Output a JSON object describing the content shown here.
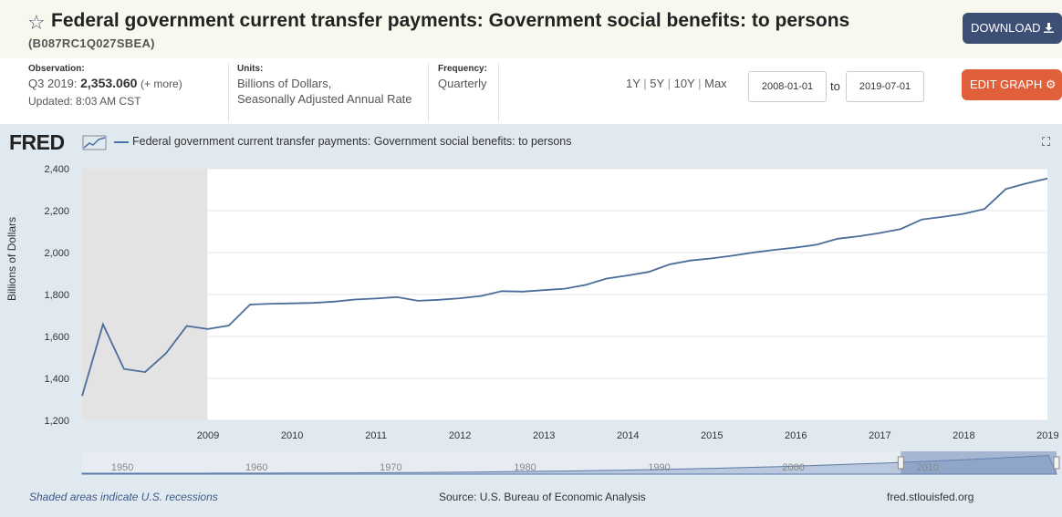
{
  "header": {
    "title": "Federal government current transfer payments: Government social benefits: to persons",
    "series_id": "(B087RC1Q027SBEA)",
    "download_label": "DOWNLOAD"
  },
  "meta": {
    "observation_label": "Observation:",
    "observation_period": "Q3 2019:",
    "observation_value": "2,353.060",
    "observation_more": "(+ more)",
    "updated": "Updated: 8:03 AM CST",
    "units_label": "Units:",
    "units_line1": "Billions of Dollars,",
    "units_line2": "Seasonally Adjusted Annual Rate",
    "frequency_label": "Frequency:",
    "frequency_value": "Quarterly"
  },
  "controls": {
    "range_1y": "1Y",
    "range_5y": "5Y",
    "range_10y": "10Y",
    "range_max": "Max",
    "start_date": "2008-01-01",
    "to_label": "to",
    "end_date": "2019-07-01",
    "edit_label": "EDIT GRAPH"
  },
  "chart_header": {
    "logo": "FRED",
    "legend": "Federal government current transfer payments: Government social benefits: to persons",
    "ylabel": "Billions of Dollars"
  },
  "footer": {
    "recession_note": "Shaded areas indicate U.S. recessions",
    "source": "Source: U.S. Bureau of Economic Analysis",
    "site": "fred.stlouisfed.org"
  },
  "colors": {
    "line": "#4a6d9a",
    "recession": "#e3e3e3",
    "plot_bg": "#ffffff",
    "frame_bg": "#e1e9f0",
    "download_btn": "#3d4f74",
    "edit_btn": "#e0603c"
  },
  "chart_data": {
    "type": "line",
    "title": "",
    "xlabel": "",
    "ylabel": "Billions of Dollars",
    "ylim": [
      1200,
      2400
    ],
    "yticks": [
      1200,
      1400,
      1600,
      1800,
      2000,
      2200,
      2400
    ],
    "ytick_labels": [
      "1,200",
      "1,400",
      "1,600",
      "1,800",
      "2,000",
      "2,200",
      "2,400"
    ],
    "xticks": [
      "2009",
      "2010",
      "2011",
      "2012",
      "2013",
      "2014",
      "2015",
      "2016",
      "2017",
      "2018",
      "2019"
    ],
    "recession": {
      "start": "2008-01-01",
      "end": "2009-06-30"
    },
    "grid": true,
    "x": [
      "2008-01-01",
      "2008-04-01",
      "2008-07-01",
      "2008-10-01",
      "2009-01-01",
      "2009-04-01",
      "2009-07-01",
      "2009-10-01",
      "2010-01-01",
      "2010-04-01",
      "2010-07-01",
      "2010-10-01",
      "2011-01-01",
      "2011-04-01",
      "2011-07-01",
      "2011-10-01",
      "2012-01-01",
      "2012-04-01",
      "2012-07-01",
      "2012-10-01",
      "2013-01-01",
      "2013-04-01",
      "2013-07-01",
      "2013-10-01",
      "2014-01-01",
      "2014-04-01",
      "2014-07-01",
      "2014-10-01",
      "2015-01-01",
      "2015-04-01",
      "2015-07-01",
      "2015-10-01",
      "2016-01-01",
      "2016-04-01",
      "2016-07-01",
      "2016-10-01",
      "2017-01-01",
      "2017-04-01",
      "2017-07-01",
      "2017-10-01",
      "2018-01-01",
      "2018-04-01",
      "2018-07-01",
      "2018-10-01",
      "2019-01-01",
      "2019-04-01",
      "2019-07-01"
    ],
    "series": [
      {
        "values": [
          1316,
          1658,
          1445,
          1430,
          1520,
          1650,
          1635,
          1652,
          1752,
          1756,
          1758,
          1760,
          1766,
          1776,
          1781,
          1788,
          1770,
          1775,
          1782,
          1793,
          1816,
          1814,
          1821,
          1828,
          1846,
          1876,
          1891,
          1908,
          1944,
          1962,
          1972,
          1985,
          2001,
          2013,
          2024,
          2038,
          2066,
          2078,
          2093,
          2112,
          2158,
          2170,
          2185,
          2208,
          2303,
          2330,
          2353
        ]
      }
    ],
    "navigator": {
      "labels": [
        "1950",
        "1960",
        "1970",
        "1980",
        "1990",
        "2000",
        "2010"
      ]
    }
  }
}
